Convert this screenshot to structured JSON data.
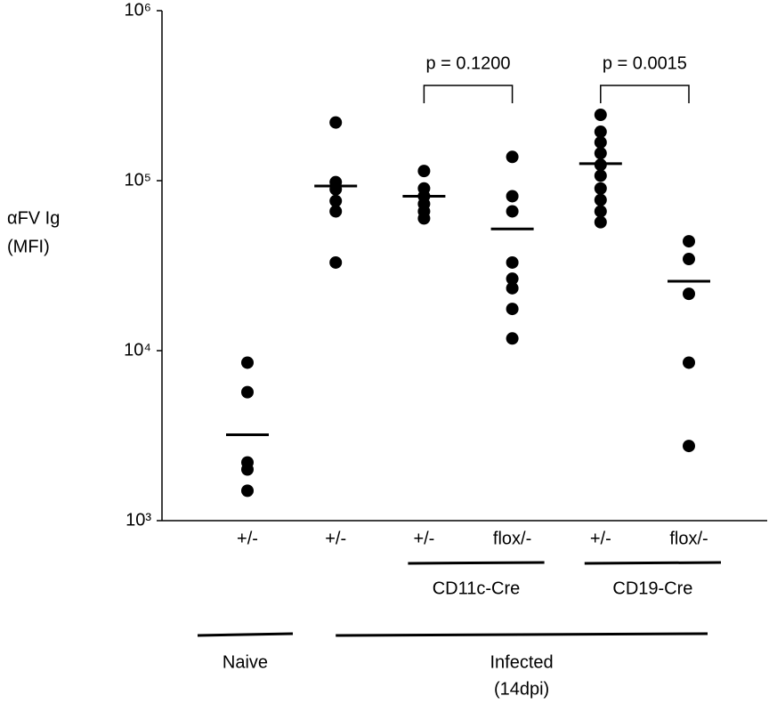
{
  "chart_data": {
    "type": "dot",
    "y_label": [
      "αFV Ig",
      "(MFI)"
    ],
    "log_y": true,
    "color": "#000000",
    "ylim": [
      1000,
      1000000
    ],
    "yticks": [
      {
        "value": 1000,
        "label": "10³"
      },
      {
        "value": 10000,
        "label": "10⁴"
      },
      {
        "value": 100000,
        "label": "10⁵"
      },
      {
        "value": 1000000,
        "label": "10⁶"
      }
    ],
    "categories": [
      "+/-",
      "+/-",
      "+/-",
      "flox/-",
      "+/-",
      "flox/-"
    ],
    "values": [
      [
        8500,
        5700,
        2200,
        2000,
        1500
      ],
      [
        220000,
        98000,
        89000,
        76000,
        66000,
        33000
      ],
      [
        114000,
        90000,
        81000,
        73000,
        66000,
        60000
      ],
      [
        138000,
        81000,
        66000,
        33000,
        26500,
        23300,
        17600,
        11800
      ],
      [
        244000,
        194000,
        168000,
        145000,
        124000,
        107000,
        90000,
        77000,
        66000,
        57000
      ],
      [
        44000,
        34600,
        21600,
        8500,
        2750
      ]
    ],
    "means": [
      3200,
      93000,
      81000,
      52000,
      126000,
      25600
    ],
    "comparisons": [
      "p = 0.1200",
      "p = 0.0015"
    ],
    "genotype_groups": [
      "CD11c-Cre",
      "CD19-Cre"
    ],
    "condition_groups": [
      [
        "Naive"
      ],
      [
        "Infected",
        "(14dpi)"
      ]
    ]
  }
}
